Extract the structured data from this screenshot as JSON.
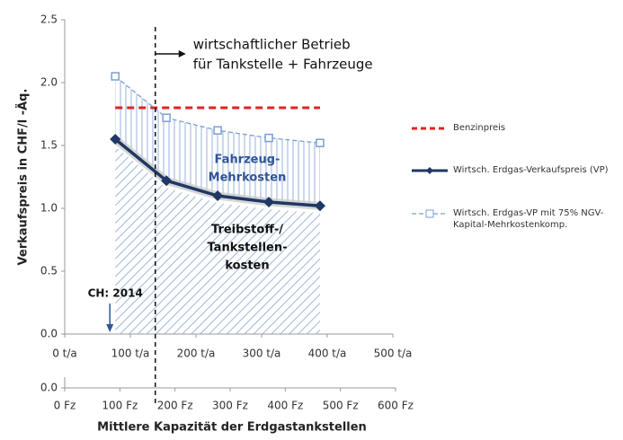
{
  "chart_data": {
    "type": "line",
    "y_label": "Verkaufspreis in CHF/l -Äq.",
    "x_label": "Mittlere Kapazität der Erdgastankstellen",
    "x": [
      77,
      155,
      233,
      311,
      389
    ],
    "xlim": [
      0,
      500
    ],
    "xticks": [
      {
        "value": 0,
        "label": "0 t/a"
      },
      {
        "value": 100,
        "label": "100 t/a"
      },
      {
        "value": 200,
        "label": "200 t/a"
      },
      {
        "value": 300,
        "label": "300 t/a"
      },
      {
        "value": 400,
        "label": "400 t/a"
      },
      {
        "value": 500,
        "label": "500 t/a"
      }
    ],
    "ylim": [
      0,
      2.5
    ],
    "yticks": [
      {
        "value": 0,
        "label": "0.0"
      },
      0.5,
      {
        "value": 1,
        "label": "1.0"
      },
      1.5,
      {
        "value": 2,
        "label": "2.0"
      },
      2.5
    ],
    "fz_axis": {
      "xlim": [
        0,
        600
      ],
      "xticks": [
        {
          "value": 0,
          "label": "0 Fz"
        },
        {
          "value": 100,
          "label": "100 Fz"
        },
        {
          "value": 200,
          "label": "200 Fz"
        },
        {
          "value": 300,
          "label": "300 Fz"
        },
        {
          "value": 400,
          "label": "400 Fz"
        },
        {
          "value": 500,
          "label": "500 Fz"
        },
        {
          "value": 600,
          "label": "600 Fz"
        }
      ],
      "yticks": [
        {
          "value": 0,
          "label": "0.0"
        }
      ]
    },
    "series": [
      {
        "name": "Benzinpreis",
        "color": "#e32222",
        "style": "dashed",
        "values": [
          1.8,
          1.8,
          1.8,
          1.8,
          1.8
        ]
      },
      {
        "name": "Wirtsch. Erdgas-Verkaufspreis (VP)",
        "color": "#1f3864",
        "style": "solid",
        "marker": "diamond",
        "values": [
          1.55,
          1.22,
          1.1,
          1.05,
          1.02
        ]
      },
      {
        "name": "Wirtsch. Erdgas-VP mit 75% NGV-Kapital-Mehrkostenkomp.",
        "color": "#7a9fd4",
        "style": "dashed",
        "marker": "square",
        "values": [
          2.05,
          1.72,
          1.62,
          1.56,
          1.52
        ]
      }
    ],
    "threshold_x": 138,
    "annotations": {
      "threshold": [
        "wirtschaftlicher Betrieb",
        "für Tankstelle + Fahrzeuge"
      ],
      "vehicle": [
        "Fahrzeug-",
        "Mehrkosten"
      ],
      "fuel": [
        "Treibstoff-/",
        "Tankstellen-",
        "kosten"
      ],
      "ch": [
        "CH: 2014"
      ]
    },
    "grid": false
  }
}
